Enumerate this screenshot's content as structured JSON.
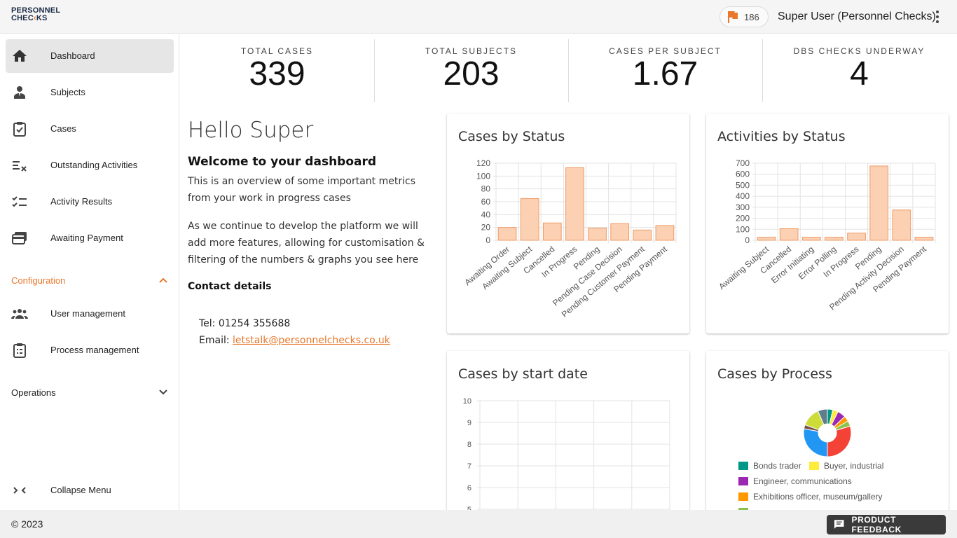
{
  "brand": {
    "line1": "PERSONNEL",
    "line2a": "CHEC",
    "line2b": "KS"
  },
  "header": {
    "flag_count": "186",
    "user_name": "Super User (Personnel Checks)"
  },
  "sidebar": {
    "items": [
      {
        "label": "Dashboard",
        "icon": "home-icon"
      },
      {
        "label": "Subjects",
        "icon": "person-icon"
      },
      {
        "label": "Cases",
        "icon": "clipboard-check-icon"
      },
      {
        "label": "Outstanding Activities",
        "icon": "checklist-x-icon"
      },
      {
        "label": "Activity Results",
        "icon": "checklist-icon"
      },
      {
        "label": "Awaiting Payment",
        "icon": "payment-icon"
      }
    ],
    "configuration_label": "Configuration",
    "config_items": [
      {
        "label": "User management",
        "icon": "group-icon"
      },
      {
        "label": "Process management",
        "icon": "clipboard-list-icon"
      }
    ],
    "operations_label": "Operations",
    "collapse_label": "Collapse Menu"
  },
  "stats": [
    {
      "label": "TOTAL CASES",
      "value": "339"
    },
    {
      "label": "TOTAL SUBJECTS",
      "value": "203"
    },
    {
      "label": "CASES PER SUBJECT",
      "value": "1.67"
    },
    {
      "label": "DBS CHECKS UNDERWAY",
      "value": "4"
    }
  ],
  "welcome": {
    "hello": "Hello Super",
    "heading": "Welcome to your dashboard",
    "para1": "This is an overview of some important metrics from your work in progress cases",
    "para2": "As we continue to develop the platform we will add more features, allowing for customisation & filtering of the numbers & graphs you see here",
    "contact_heading": "Contact details",
    "tel": "Tel: 01254 355688",
    "email_prefix": "Email: ",
    "email": "letstalk@personnelchecks.co.uk"
  },
  "footer": {
    "copyright": "© 2023",
    "feedback": "PRODUCT FEEDBACK"
  },
  "colors": {
    "accent": "#e8772b",
    "bar_fill": "#fbd0b3",
    "bar_stroke": "#ee9b66"
  },
  "chart_data": [
    {
      "type": "bar",
      "title": "Cases by Status",
      "categories": [
        "Awaiting Order",
        "Awaiting Subject",
        "Cancelled",
        "In Progress",
        "Pending",
        "Pending Case Decision",
        "Pending Customer Payment",
        "Pending Payment"
      ],
      "values": [
        20,
        65,
        27,
        113,
        19,
        26,
        16,
        23
      ],
      "ylim": [
        0,
        120
      ],
      "yticks": [
        0,
        20,
        40,
        60,
        80,
        100,
        120
      ]
    },
    {
      "type": "bar",
      "title": "Activities by Status",
      "categories": [
        "Awaiting Subject",
        "Cancelled",
        "Error Initiating",
        "Error Polling",
        "In Progress",
        "Pending",
        "Pending Activity Decision",
        "Pending Payment"
      ],
      "values": [
        28,
        105,
        28,
        28,
        65,
        675,
        275,
        28
      ],
      "ylim": [
        0,
        700
      ],
      "yticks": [
        0,
        100,
        200,
        300,
        400,
        500,
        600,
        700
      ]
    },
    {
      "type": "line",
      "title": "Cases by start date",
      "yticks": [
        5,
        6,
        7,
        8,
        9,
        10
      ],
      "ylim": [
        5,
        10
      ],
      "series": []
    },
    {
      "type": "pie",
      "title": "Cases by Process",
      "slices": [
        {
          "name": "Bonds trader",
          "color": "#009688",
          "value": 4
        },
        {
          "name": "Buyer, industrial",
          "color": "#ffeb3b",
          "value": 4
        },
        {
          "name": "Engineer, communications",
          "color": "#9c27b0",
          "value": 6
        },
        {
          "name": "Exhibitions officer, museum/gallery",
          "color": "#ff9800",
          "value": 4
        },
        {
          "name": "",
          "color": "#8bc34a",
          "value": 4
        },
        {
          "name": "",
          "color": "#f44336",
          "value": 32
        },
        {
          "name": "",
          "color": "#2196f3",
          "value": 30
        },
        {
          "name": "",
          "color": "#795548",
          "value": 3
        },
        {
          "name": "",
          "color": "#cddc39",
          "value": 14
        },
        {
          "name": "",
          "color": "#607d8b",
          "value": 7
        }
      ]
    }
  ]
}
